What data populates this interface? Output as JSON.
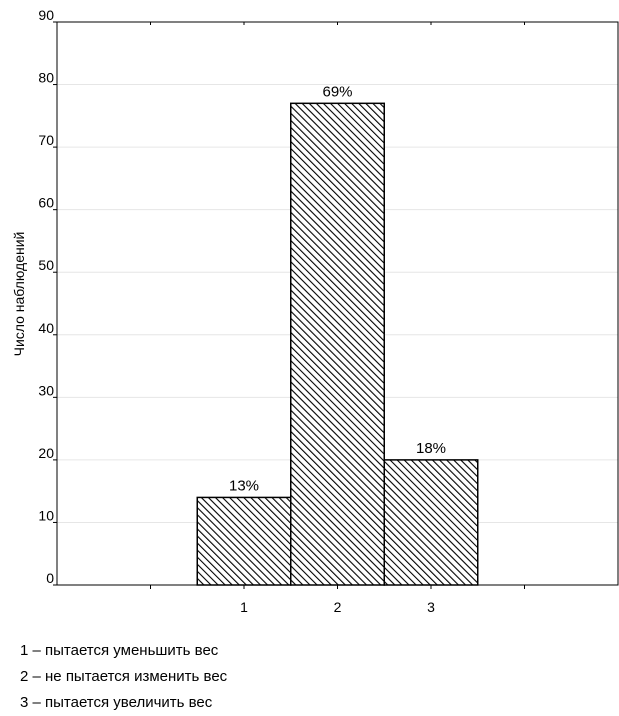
{
  "chart_data": {
    "type": "bar",
    "title": "",
    "xlabel": "",
    "ylabel": "Число наблюдений",
    "categories": [
      "1",
      "2",
      "3"
    ],
    "values": [
      14,
      77,
      20
    ],
    "data_labels": [
      "13%",
      "69%",
      "18%"
    ],
    "x_positions": [
      2,
      3,
      4
    ],
    "xlim": [
      0,
      6
    ],
    "ylim": [
      0,
      90
    ],
    "yticks": [
      0,
      10,
      20,
      30,
      40,
      50,
      60,
      70,
      80,
      90
    ],
    "grid": true,
    "bar_fill": "diagonal hatch",
    "colors": {
      "bar_stroke": "#000000",
      "hatch": "#000000",
      "grid": "#e6e6e6",
      "axis": "#000000"
    }
  },
  "legend": [
    "1 – пытается уменьшить вес",
    "2 – не пытается изменить вес",
    "3 – пытается увеличить вес"
  ]
}
